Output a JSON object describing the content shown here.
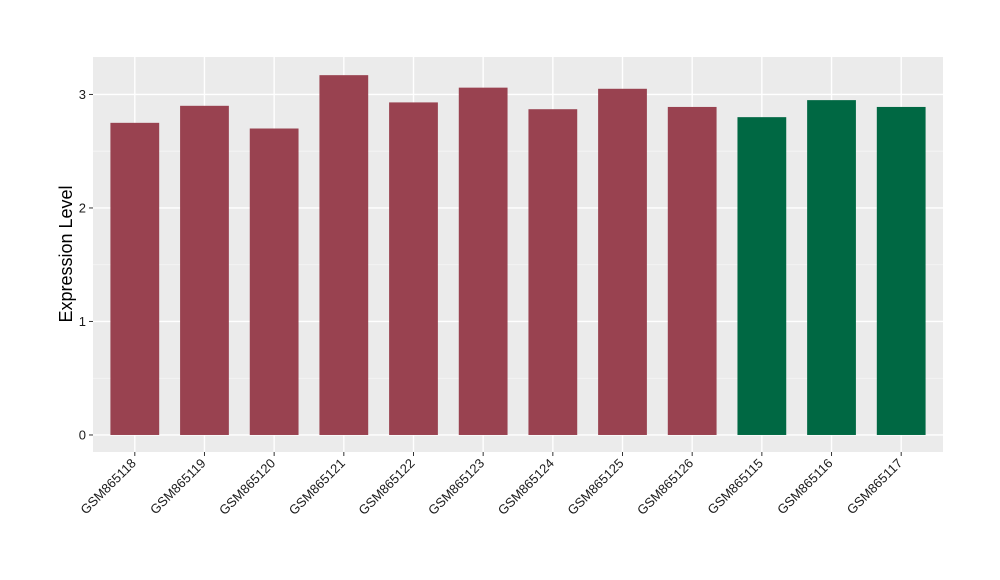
{
  "chart_data": {
    "type": "bar",
    "title": "",
    "xlabel": "",
    "ylabel": "Expression Level",
    "categories": [
      "GSM865118",
      "GSM865119",
      "GSM865120",
      "GSM865121",
      "GSM865122",
      "GSM865123",
      "GSM865124",
      "GSM865125",
      "GSM865126",
      "GSM865115",
      "GSM865116",
      "GSM865117"
    ],
    "values": [
      2.75,
      2.9,
      2.7,
      3.17,
      2.93,
      3.06,
      2.87,
      3.05,
      2.89,
      2.8,
      2.95,
      2.89
    ],
    "bar_colors": [
      "#994250",
      "#994250",
      "#994250",
      "#994250",
      "#994250",
      "#994250",
      "#994250",
      "#994250",
      "#994250",
      "#006843",
      "#006843",
      "#006843"
    ],
    "ylim": [
      -0.15,
      3.33
    ],
    "yticks": [
      0,
      1,
      2,
      3
    ],
    "ytick_labels": [
      "0",
      "1",
      "2",
      "3"
    ],
    "grid": true,
    "panel_background": "#ebebeb",
    "gridline_color": "#ffffff"
  }
}
